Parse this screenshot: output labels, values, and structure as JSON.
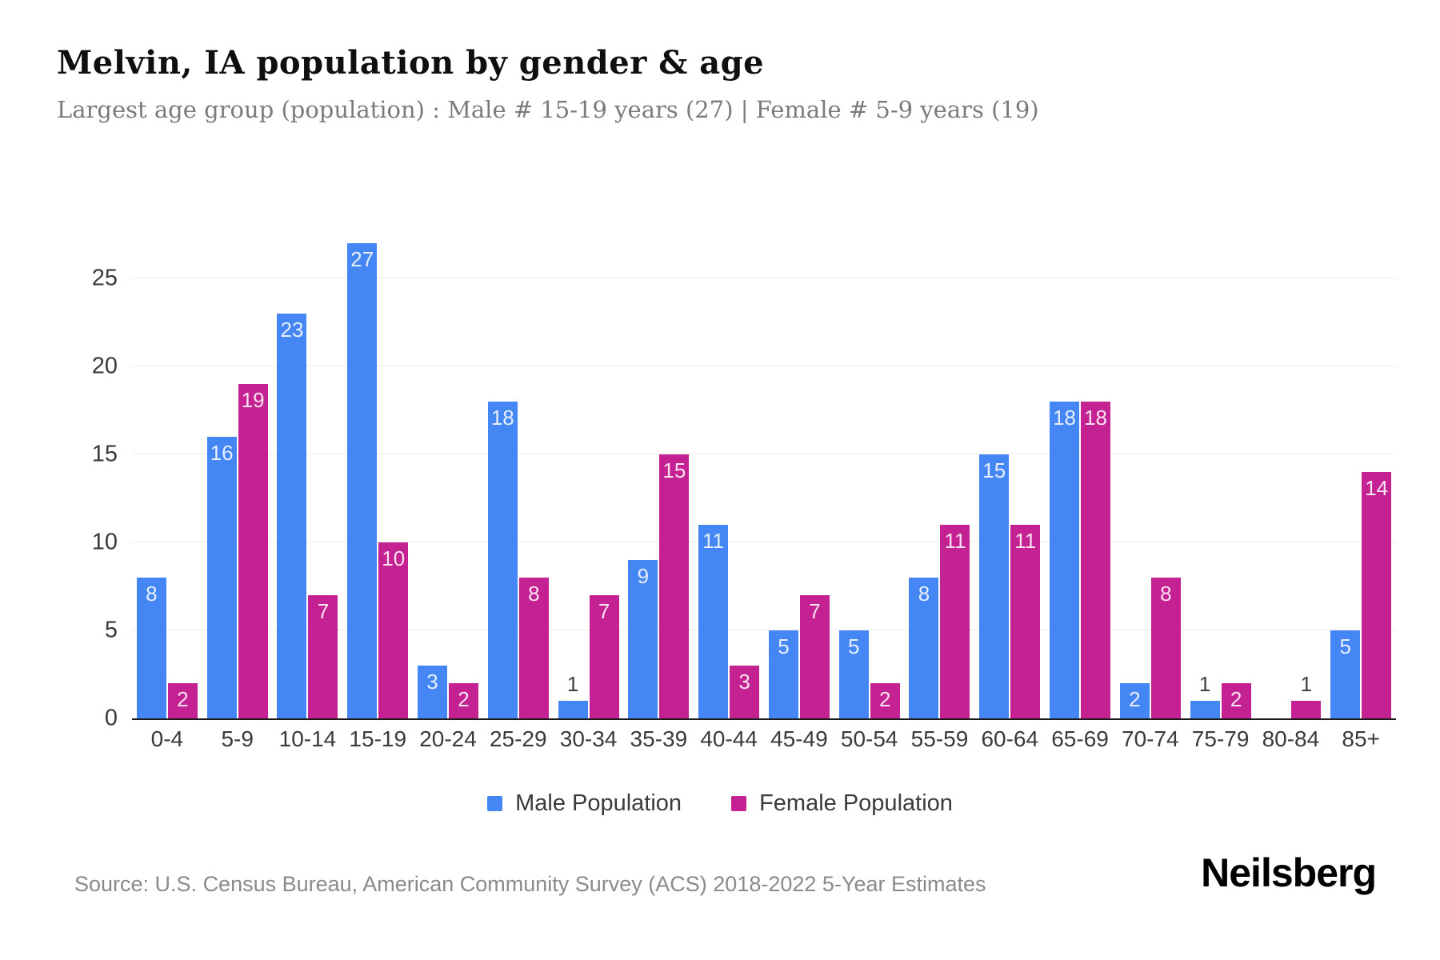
{
  "header": {
    "title": "Melvin, IA population by gender & age",
    "subtitle": "Largest age group (population) : Male # 15-19 years (27) | Female # 5-9 years (19)"
  },
  "chart_data": {
    "type": "bar",
    "title": "Melvin, IA population by gender & age",
    "categories": [
      "0-4",
      "5-9",
      "10-14",
      "15-19",
      "20-24",
      "25-29",
      "30-34",
      "35-39",
      "40-44",
      "45-49",
      "50-54",
      "55-59",
      "60-64",
      "65-69",
      "70-74",
      "75-79",
      "80-84",
      "85+"
    ],
    "series": [
      {
        "name": "Male Population",
        "color": "#4486F4",
        "values": [
          8,
          16,
          23,
          27,
          3,
          18,
          1,
          9,
          11,
          5,
          5,
          8,
          15,
          18,
          2,
          1,
          0,
          5
        ]
      },
      {
        "name": "Female Population",
        "color": "#C42192",
        "values": [
          2,
          19,
          7,
          10,
          2,
          8,
          7,
          15,
          3,
          7,
          2,
          11,
          11,
          18,
          8,
          2,
          1,
          14
        ]
      }
    ],
    "xlabel": "",
    "ylabel": "",
    "ylim": [
      0,
      27
    ],
    "yticks": [
      0,
      5,
      10,
      15,
      20,
      25
    ],
    "grid": true,
    "legend_position": "bottom",
    "value_labels": true
  },
  "footer": {
    "source": "Source: U.S. Census Bureau, American Community Survey (ACS) 2018-2022 5-Year Estimates",
    "brand": "Neilsberg"
  }
}
